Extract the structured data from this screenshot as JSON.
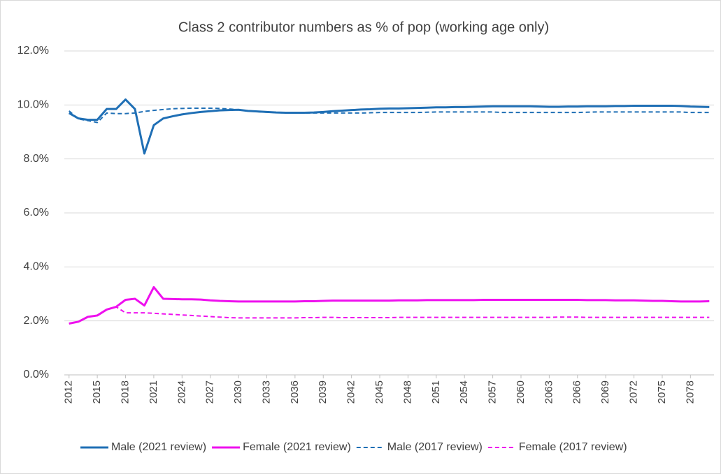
{
  "chart_data": {
    "type": "line",
    "title": "Class 2 contributor numbers as % of pop (working age only)",
    "x": [
      2012,
      2013,
      2014,
      2015,
      2016,
      2017,
      2018,
      2019,
      2020,
      2021,
      2022,
      2023,
      2024,
      2025,
      2026,
      2027,
      2028,
      2029,
      2030,
      2031,
      2032,
      2033,
      2034,
      2035,
      2036,
      2037,
      2038,
      2039,
      2040,
      2041,
      2042,
      2043,
      2044,
      2045,
      2046,
      2047,
      2048,
      2049,
      2050,
      2051,
      2052,
      2053,
      2054,
      2055,
      2056,
      2057,
      2058,
      2059,
      2060,
      2061,
      2062,
      2063,
      2064,
      2065,
      2066,
      2067,
      2068,
      2069,
      2070,
      2071,
      2072,
      2073,
      2074,
      2075,
      2076,
      2077,
      2078,
      2079,
      2080
    ],
    "xlim": [
      2011.5,
      2080.5
    ],
    "xticks": [
      2012,
      2015,
      2018,
      2021,
      2024,
      2027,
      2030,
      2033,
      2036,
      2039,
      2042,
      2045,
      2048,
      2051,
      2054,
      2057,
      2060,
      2063,
      2066,
      2069,
      2072,
      2075,
      2078
    ],
    "ylim": [
      0,
      12
    ],
    "yticks": [
      {
        "value": 0,
        "label": "0.0%"
      },
      {
        "value": 2,
        "label": "2.0%"
      },
      {
        "value": 4,
        "label": "4.0%"
      },
      {
        "value": 6,
        "label": "6.0%"
      },
      {
        "value": 8,
        "label": "8.0%"
      },
      {
        "value": 10,
        "label": "10.0%"
      },
      {
        "value": 12,
        "label": "12.0%"
      }
    ],
    "grid": true,
    "legend": "bottom",
    "series": [
      {
        "name": "Male (2021 review)",
        "color": "#1f6fb5",
        "dashed": false,
        "values": [
          9.7,
          9.5,
          9.45,
          9.45,
          9.85,
          9.85,
          10.2,
          9.85,
          8.2,
          9.25,
          9.5,
          9.58,
          9.65,
          9.7,
          9.74,
          9.77,
          9.8,
          9.81,
          9.82,
          9.78,
          9.76,
          9.74,
          9.72,
          9.71,
          9.71,
          9.71,
          9.72,
          9.74,
          9.77,
          9.79,
          9.81,
          9.83,
          9.84,
          9.86,
          9.87,
          9.87,
          9.88,
          9.89,
          9.9,
          9.91,
          9.91,
          9.92,
          9.92,
          9.93,
          9.94,
          9.95,
          9.95,
          9.95,
          9.95,
          9.95,
          9.94,
          9.93,
          9.93,
          9.94,
          9.94,
          9.95,
          9.95,
          9.95,
          9.96,
          9.96,
          9.97,
          9.97,
          9.97,
          9.97,
          9.97,
          9.96,
          9.94,
          9.93,
          9.92
        ]
      },
      {
        "name": "Female (2021 review)",
        "color": "#ee10ee",
        "dashed": false,
        "values": [
          1.9,
          1.97,
          2.15,
          2.2,
          2.42,
          2.52,
          2.78,
          2.82,
          2.57,
          3.25,
          2.82,
          2.81,
          2.8,
          2.8,
          2.79,
          2.76,
          2.74,
          2.73,
          2.72,
          2.72,
          2.72,
          2.72,
          2.72,
          2.72,
          2.72,
          2.73,
          2.73,
          2.74,
          2.75,
          2.75,
          2.75,
          2.75,
          2.75,
          2.75,
          2.75,
          2.76,
          2.76,
          2.76,
          2.77,
          2.77,
          2.77,
          2.77,
          2.77,
          2.77,
          2.78,
          2.78,
          2.78,
          2.78,
          2.78,
          2.78,
          2.78,
          2.78,
          2.78,
          2.78,
          2.78,
          2.77,
          2.77,
          2.77,
          2.76,
          2.76,
          2.76,
          2.75,
          2.74,
          2.74,
          2.73,
          2.72,
          2.72,
          2.72,
          2.73
        ]
      },
      {
        "name": "Male (2017 review)",
        "color": "#1f6fb5",
        "dashed": true,
        "values": [
          9.78,
          9.48,
          9.42,
          9.35,
          9.7,
          9.68,
          9.68,
          9.7,
          9.76,
          9.8,
          9.83,
          9.86,
          9.87,
          9.88,
          9.88,
          9.88,
          9.87,
          9.85,
          9.82,
          9.78,
          9.75,
          9.73,
          9.72,
          9.7,
          9.7,
          9.7,
          9.7,
          9.7,
          9.7,
          9.7,
          9.7,
          9.7,
          9.71,
          9.72,
          9.72,
          9.72,
          9.72,
          9.72,
          9.73,
          9.74,
          9.74,
          9.74,
          9.74,
          9.74,
          9.74,
          9.74,
          9.72,
          9.72,
          9.72,
          9.72,
          9.72,
          9.72,
          9.72,
          9.72,
          9.72,
          9.73,
          9.74,
          9.74,
          9.74,
          9.74,
          9.74,
          9.74,
          9.74,
          9.74,
          9.74,
          9.74,
          9.72,
          9.72,
          9.72
        ]
      },
      {
        "name": "Female (2017 review)",
        "color": "#ee10ee",
        "dashed": true,
        "values": [
          1.9,
          1.97,
          2.15,
          2.2,
          2.42,
          2.52,
          2.3,
          2.3,
          2.3,
          2.28,
          2.26,
          2.24,
          2.22,
          2.2,
          2.18,
          2.16,
          2.14,
          2.12,
          2.11,
          2.11,
          2.11,
          2.11,
          2.11,
          2.11,
          2.11,
          2.12,
          2.12,
          2.13,
          2.13,
          2.12,
          2.12,
          2.12,
          2.12,
          2.12,
          2.12,
          2.13,
          2.13,
          2.13,
          2.13,
          2.13,
          2.13,
          2.13,
          2.13,
          2.13,
          2.13,
          2.13,
          2.13,
          2.13,
          2.13,
          2.13,
          2.13,
          2.13,
          2.14,
          2.14,
          2.14,
          2.13,
          2.13,
          2.13,
          2.13,
          2.13,
          2.13,
          2.13,
          2.13,
          2.13,
          2.13,
          2.13,
          2.13,
          2.13,
          2.13
        ]
      }
    ]
  }
}
